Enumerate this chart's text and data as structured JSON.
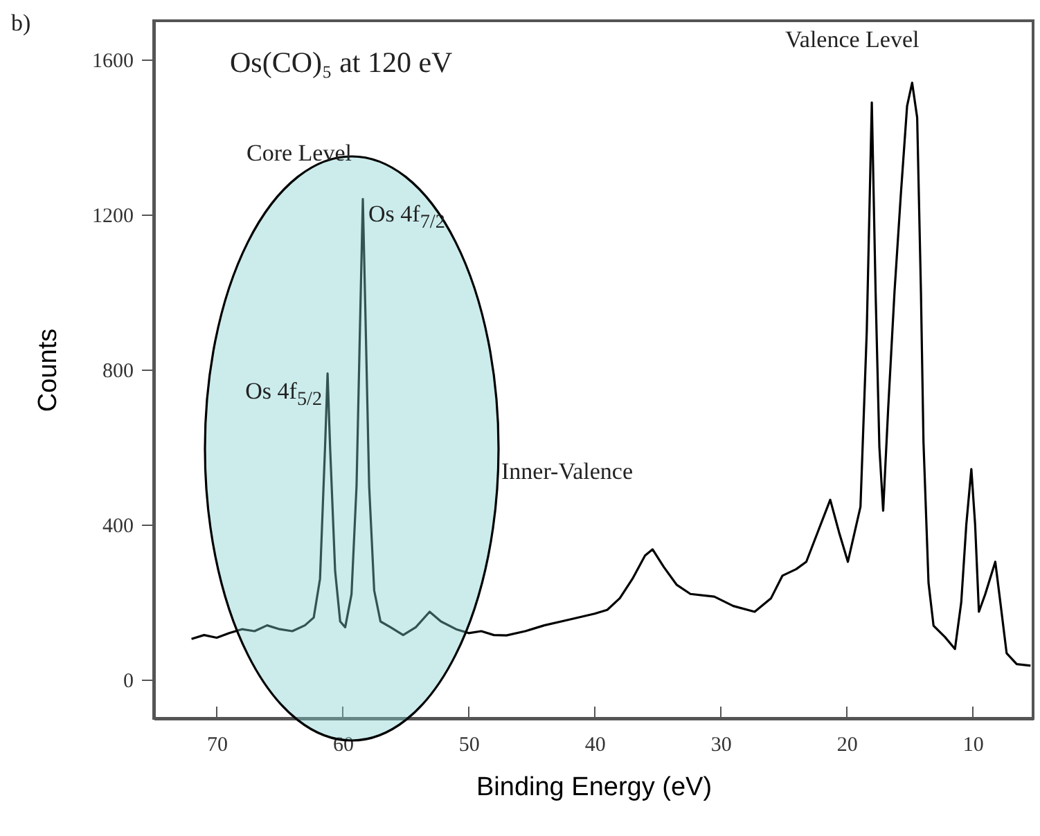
{
  "chart_data": {
    "type": "line",
    "title": "Os(CO)₅ at 120 eV",
    "xlabel": "Binding Energy (eV)",
    "ylabel": "Counts",
    "x": [
      72,
      71,
      70,
      69,
      68,
      67,
      66,
      65,
      64,
      63,
      62.3,
      61.8,
      61.4,
      61.2,
      61.0,
      60.6,
      60.2,
      59.8,
      59.3,
      58.9,
      58.6,
      58.4,
      58.2,
      57.9,
      57.5,
      57.0,
      56.2,
      55.2,
      54.2,
      53.1,
      52.2,
      51,
      50,
      49,
      48,
      47,
      45.5,
      44,
      42,
      40,
      39,
      38,
      37,
      36,
      35.4,
      34.5,
      33.5,
      32.4,
      30.5,
      29,
      27.3,
      26,
      25.1,
      24,
      23.2,
      22.3,
      21.3,
      20.6,
      19.9,
      18.9,
      18.4,
      18.0,
      17.7,
      17.4,
      17.1,
      16.7,
      16.2,
      15.7,
      15.2,
      14.8,
      14.4,
      14.1,
      13.9,
      13.5,
      13.1,
      12.2,
      11.4,
      10.9,
      10.5,
      10.1,
      9.8,
      9.5,
      9.0,
      8.2,
      7.8,
      7.3,
      6.5,
      5.4
    ],
    "values": [
      105,
      115,
      108,
      120,
      130,
      125,
      140,
      130,
      125,
      140,
      160,
      260,
      600,
      790,
      600,
      280,
      150,
      135,
      220,
      500,
      950,
      1240,
      950,
      500,
      230,
      150,
      135,
      115,
      135,
      175,
      150,
      130,
      120,
      125,
      115,
      114,
      125,
      140,
      155,
      170,
      180,
      210,
      260,
      320,
      336,
      290,
      245,
      221,
      214,
      190,
      175,
      210,
      268,
      285,
      304,
      380,
      464,
      380,
      304,
      446,
      900,
      1489,
      1000,
      600,
      436,
      700,
      1000,
      1250,
      1480,
      1540,
      1450,
      1000,
      614,
      250,
      139,
      110,
      79,
      200,
      400,
      543,
      400,
      175,
      220,
      304,
      200,
      68,
      40,
      36
    ],
    "color": "#000000",
    "line_style": "solid",
    "marker": "none",
    "xlim": [
      75,
      5.2
    ],
    "xticks": [
      70,
      60,
      50,
      40,
      30,
      20,
      10
    ],
    "ylim": [
      -100,
      1700
    ],
    "yticks": [
      0,
      400,
      800,
      1200,
      1600
    ],
    "grid": false,
    "annotations": [
      "b)",
      "Core Level",
      "Inner-Valence",
      "Valence Level",
      {
        "text": "Os 4f$_{5/2}$",
        "x": 61.2,
        "y": 790
      },
      {
        "text": "Os 4f$_{7/2}$",
        "x": 58.4,
        "y": 1240
      }
    ]
  }
}
